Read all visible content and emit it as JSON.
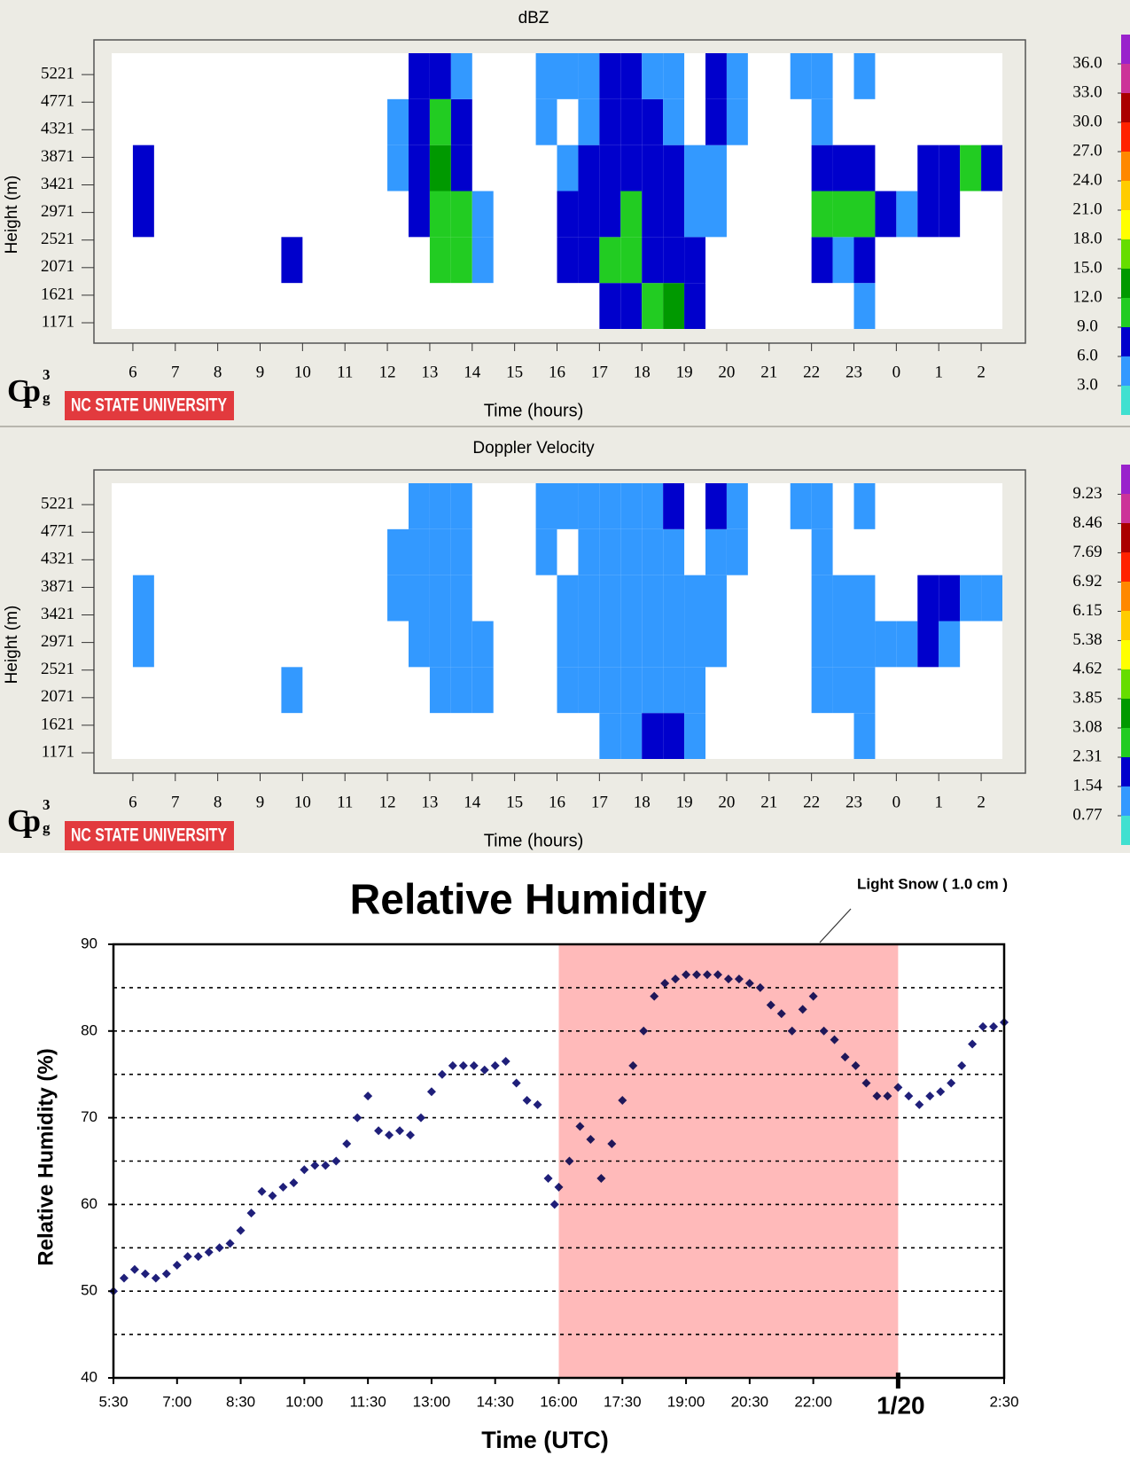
{
  "chart_data": [
    {
      "type": "heatmap",
      "title": "dBZ",
      "xlabel": "Time (hours)",
      "ylabel": "Height (m)",
      "xlim": [
        5.5,
        26.5
      ],
      "ylim": [
        1070,
        5570
      ],
      "xticks": [
        6,
        7,
        8,
        9,
        10,
        11,
        12,
        13,
        14,
        15,
        16,
        17,
        18,
        19,
        20,
        21,
        22,
        23,
        {
          "value": 24,
          "label": "0"
        },
        {
          "value": 25,
          "label": "1"
        },
        {
          "value": 26,
          "label": "2"
        }
      ],
      "yticks": [
        1171,
        1621,
        2071,
        2521,
        2971,
        3421,
        3871,
        4321,
        4771,
        5221
      ],
      "x_bins": [
        5.5,
        6,
        6.5,
        7,
        7.5,
        8,
        8.5,
        9,
        9.5,
        10,
        10.5,
        11,
        11.5,
        12,
        12.5,
        13,
        13.5,
        14,
        14.5,
        15,
        15.5,
        16,
        16.5,
        17,
        17.5,
        18,
        18.5,
        19,
        19.5,
        20,
        20.5,
        21,
        21.5,
        22,
        22.5,
        23,
        23.5,
        24,
        24.5,
        25,
        25.5,
        26,
        26.5
      ],
      "y_bins": [
        1070,
        1820,
        2570,
        3320,
        4070,
        4820,
        5570
      ],
      "z": [
        [
          null,
          null,
          null,
          null,
          null,
          null,
          null,
          null,
          null,
          null,
          null,
          null,
          null,
          null,
          null,
          null,
          null,
          null,
          null,
          null,
          null,
          null,
          null,
          7,
          8,
          10,
          12,
          8,
          null,
          null,
          null,
          null,
          null,
          null,
          null,
          5,
          null,
          null,
          null,
          null,
          null,
          null
        ],
        [
          null,
          null,
          null,
          null,
          null,
          null,
          null,
          null,
          6,
          null,
          null,
          null,
          null,
          null,
          null,
          9,
          9,
          5,
          null,
          null,
          null,
          7,
          7,
          9,
          9,
          8,
          8,
          6,
          null,
          null,
          null,
          null,
          null,
          7,
          5,
          8,
          null,
          null,
          null,
          null,
          null,
          null
        ],
        [
          null,
          8,
          null,
          null,
          null,
          null,
          null,
          null,
          null,
          null,
          null,
          null,
          null,
          null,
          8,
          11,
          9,
          5,
          null,
          null,
          null,
          7,
          7,
          8,
          9,
          8,
          7,
          5,
          5,
          null,
          null,
          null,
          null,
          10,
          9,
          9,
          6,
          5,
          6,
          6,
          null,
          null
        ],
        [
          null,
          8,
          null,
          null,
          null,
          null,
          null,
          null,
          null,
          null,
          null,
          null,
          null,
          5,
          8,
          12,
          8,
          null,
          null,
          null,
          null,
          5,
          7,
          8,
          8,
          7,
          6,
          5,
          5,
          null,
          null,
          null,
          null,
          6,
          8,
          7,
          null,
          null,
          7,
          7,
          9,
          6
        ],
        [
          null,
          null,
          null,
          null,
          null,
          null,
          null,
          null,
          null,
          null,
          null,
          null,
          null,
          5,
          7,
          10,
          6,
          null,
          null,
          null,
          4,
          null,
          5,
          7,
          7,
          6,
          5,
          null,
          6,
          4,
          null,
          null,
          null,
          4,
          null,
          null,
          null,
          null,
          null,
          null,
          null,
          null
        ],
        [
          null,
          null,
          null,
          null,
          null,
          null,
          null,
          null,
          null,
          null,
          null,
          null,
          null,
          null,
          6,
          7,
          5,
          null,
          null,
          null,
          4,
          5,
          5,
          6,
          7,
          5,
          5,
          null,
          7,
          4,
          null,
          null,
          4,
          4,
          null,
          4,
          null,
          null,
          null,
          null,
          null,
          null
        ]
      ],
      "colorbar": {
        "zlim": [
          0,
          39
        ],
        "colors": [
          "#40e0d0",
          "#3399ff",
          "#0000cc",
          "#22cc22",
          "#009900",
          "#66dd00",
          "#ffff00",
          "#ffcc00",
          "#ff8800",
          "#ff2200",
          "#aa0000",
          "#cc3399",
          "#9922cc"
        ],
        "ticks": [
          {
            "value": 3,
            "label": "3.0"
          },
          {
            "value": 6,
            "label": "6.0"
          },
          {
            "value": 9,
            "label": "9.0"
          },
          {
            "value": 12,
            "label": "12.0"
          },
          {
            "value": 15,
            "label": "15.0"
          },
          {
            "value": 18,
            "label": "18.0"
          },
          {
            "value": 21,
            "label": "21.0"
          },
          {
            "value": 24,
            "label": "24.0"
          },
          {
            "value": 27,
            "label": "27.0"
          },
          {
            "value": 30,
            "label": "30.0"
          },
          {
            "value": 33,
            "label": "33.0"
          },
          {
            "value": 36,
            "label": "36.0"
          }
        ]
      },
      "logo_mark": "Cp",
      "logo_sup": "3",
      "logo_sub": "g",
      "logo": "NC STATE UNIVERSITY"
    },
    {
      "type": "heatmap",
      "title": "Doppler Velocity",
      "xlabel": "Time (hours)",
      "ylabel": "Height (m)",
      "xlim": [
        5.5,
        26.5
      ],
      "ylim": [
        1070,
        5570
      ],
      "xticks": [
        6,
        7,
        8,
        9,
        10,
        11,
        12,
        13,
        14,
        15,
        16,
        17,
        18,
        19,
        20,
        21,
        22,
        23,
        {
          "value": 24,
          "label": "0"
        },
        {
          "value": 25,
          "label": "1"
        },
        {
          "value": 26,
          "label": "2"
        }
      ],
      "yticks": [
        1171,
        1621,
        2071,
        2521,
        2971,
        3421,
        3871,
        4321,
        4771,
        5221
      ],
      "x_bins": [
        5.5,
        6,
        6.5,
        7,
        7.5,
        8,
        8.5,
        9,
        9.5,
        10,
        10.5,
        11,
        11.5,
        12,
        12.5,
        13,
        13.5,
        14,
        14.5,
        15,
        15.5,
        16,
        16.5,
        17,
        17.5,
        18,
        18.5,
        19,
        19.5,
        20,
        20.5,
        21,
        21.5,
        22,
        22.5,
        23,
        23.5,
        24,
        24.5,
        25,
        25.5,
        26,
        26.5
      ],
      "y_bins": [
        1070,
        1820,
        2570,
        3320,
        4070,
        4820,
        5570
      ],
      "z": [
        [
          null,
          null,
          null,
          null,
          null,
          null,
          null,
          null,
          null,
          null,
          null,
          null,
          null,
          null,
          null,
          null,
          null,
          null,
          null,
          null,
          null,
          null,
          null,
          1.3,
          1.4,
          1.7,
          1.8,
          1.3,
          null,
          null,
          null,
          null,
          null,
          null,
          null,
          1.3,
          null,
          null,
          null,
          null,
          null,
          null
        ],
        [
          null,
          null,
          null,
          null,
          null,
          null,
          null,
          null,
          1.3,
          null,
          null,
          null,
          null,
          null,
          null,
          1.3,
          1.3,
          1.2,
          null,
          null,
          null,
          1.3,
          1.3,
          1.3,
          1.3,
          1.3,
          1.4,
          1.2,
          null,
          null,
          null,
          null,
          null,
          1.3,
          1.3,
          1.3,
          null,
          null,
          null,
          null,
          null,
          null
        ],
        [
          null,
          1.3,
          null,
          null,
          null,
          null,
          null,
          null,
          null,
          null,
          null,
          null,
          null,
          null,
          1.3,
          1.3,
          1.3,
          1.2,
          null,
          null,
          null,
          1.3,
          1.3,
          1.3,
          1.3,
          1.3,
          1.3,
          1.2,
          1.2,
          null,
          null,
          null,
          null,
          1.3,
          1.3,
          1.3,
          1.2,
          1.2,
          1.6,
          1.3,
          null,
          null
        ],
        [
          null,
          1.3,
          null,
          null,
          null,
          null,
          null,
          null,
          null,
          null,
          null,
          null,
          null,
          1.2,
          1.3,
          1.3,
          1.3,
          null,
          null,
          null,
          null,
          1.2,
          1.3,
          1.3,
          1.3,
          1.3,
          1.3,
          1.2,
          1.2,
          null,
          null,
          null,
          null,
          1.3,
          1.3,
          1.3,
          null,
          null,
          1.8,
          1.9,
          1.3,
          1.2
        ],
        [
          null,
          null,
          null,
          null,
          null,
          null,
          null,
          null,
          null,
          null,
          null,
          null,
          null,
          1.3,
          1.3,
          1.3,
          1.3,
          null,
          null,
          null,
          1.2,
          null,
          1.3,
          1.3,
          1.3,
          1.3,
          1.3,
          null,
          1.3,
          1.2,
          null,
          null,
          null,
          1.2,
          null,
          null,
          null,
          null,
          null,
          null,
          null,
          null
        ],
        [
          null,
          null,
          null,
          null,
          null,
          null,
          null,
          null,
          null,
          null,
          null,
          null,
          null,
          null,
          1.2,
          1.3,
          1.3,
          null,
          null,
          null,
          1.2,
          1.3,
          1.3,
          1.3,
          1.4,
          1.4,
          1.6,
          null,
          1.6,
          1.3,
          null,
          null,
          1.3,
          1.3,
          null,
          1.3,
          null,
          null,
          null,
          null,
          null,
          null
        ]
      ],
      "colorbar": {
        "zlim": [
          0,
          10.01
        ],
        "colors": [
          "#40e0d0",
          "#3399ff",
          "#0000cc",
          "#22cc22",
          "#009900",
          "#66dd00",
          "#ffff00",
          "#ffcc00",
          "#ff8800",
          "#ff2200",
          "#aa0000",
          "#cc3399",
          "#9922cc"
        ],
        "ticks": [
          0.77,
          1.54,
          2.31,
          3.08,
          3.85,
          4.62,
          5.38,
          6.15,
          6.92,
          7.69,
          8.46,
          9.23
        ]
      },
      "logo_mark": "Cp",
      "logo_sup": "3",
      "logo_sub": "g",
      "logo": "NC STATE UNIVERSITY"
    },
    {
      "type": "scatter",
      "title": "Relative Humidity",
      "xlabel": "Time (UTC)",
      "ylabel": "Relative Humidity (%)",
      "xlim": [
        5.5,
        26.5
      ],
      "ylim": [
        40,
        90
      ],
      "xticks": [
        {
          "value": 5.5,
          "label": "5:30"
        },
        {
          "value": 7,
          "label": "7:00"
        },
        {
          "value": 8.5,
          "label": "8:30"
        },
        {
          "value": 10,
          "label": "10:00"
        },
        {
          "value": 11.5,
          "label": "11:30"
        },
        {
          "value": 13,
          "label": "13:00"
        },
        {
          "value": 14.5,
          "label": "14:30"
        },
        {
          "value": 16,
          "label": "16:00"
        },
        {
          "value": 17.5,
          "label": "17:30"
        },
        {
          "value": 19,
          "label": "19:00"
        },
        {
          "value": 20.5,
          "label": "20:30"
        },
        {
          "value": 22,
          "label": "22:00"
        },
        {
          "value": 26.5,
          "label": "2:30"
        }
      ],
      "date_tick": {
        "value": 24,
        "label": "1/20"
      },
      "yticks": [
        40,
        50,
        60,
        70,
        80,
        90
      ],
      "grid_lines": [
        45,
        50,
        55,
        60,
        65,
        70,
        75,
        80,
        85
      ],
      "shade": {
        "x": [
          16,
          24
        ],
        "color": "#ffbaba"
      },
      "annotation": "Light Snow ( 1.0 cm )",
      "color": "#1f1f7a",
      "x": [
        5.5,
        5.75,
        6,
        6.25,
        6.5,
        6.75,
        7,
        7.25,
        7.5,
        7.75,
        8,
        8.25,
        8.5,
        8.75,
        9,
        9.25,
        9.5,
        9.75,
        10,
        10.25,
        10.5,
        10.75,
        11,
        11.25,
        11.5,
        11.75,
        12,
        12.25,
        12.5,
        12.75,
        13,
        13.25,
        13.5,
        13.75,
        14,
        14.25,
        14.5,
        14.75,
        15,
        15.25,
        15.5,
        15.75,
        15.9,
        16,
        16.25,
        16.5,
        16.75,
        17,
        17.25,
        17.5,
        17.75,
        18,
        18.25,
        18.5,
        18.75,
        19,
        19.25,
        19.5,
        19.75,
        20,
        20.25,
        20.5,
        20.75,
        21,
        21.25,
        21.5,
        21.75,
        22,
        22.25,
        22.5,
        22.75,
        23,
        23.25,
        23.5,
        23.75,
        24,
        24.25,
        24.5,
        24.75,
        25,
        25.25,
        25.5,
        25.75,
        26,
        26.25,
        26.5
      ],
      "values": [
        50,
        51.5,
        52.5,
        52,
        51.5,
        52,
        53,
        54,
        54,
        54.5,
        55,
        55.5,
        57,
        59,
        61.5,
        61,
        62,
        62.5,
        64,
        64.5,
        64.5,
        65,
        67,
        70,
        72.5,
        68.5,
        68,
        68.5,
        68,
        70,
        73,
        75,
        76,
        76,
        76,
        75.5,
        76,
        76.5,
        74,
        72,
        71.5,
        63,
        60,
        62,
        65,
        69,
        67.5,
        63,
        67,
        72,
        76,
        80,
        84,
        85.5,
        86,
        86.5,
        86.5,
        86.5,
        86.5,
        86,
        86,
        85.5,
        85,
        83,
        82,
        80,
        82.5,
        84,
        80,
        79,
        77,
        76,
        74,
        72.5,
        72.5,
        73.5,
        72.5,
        71.5,
        72.5,
        73,
        74,
        76,
        78.5,
        80.5,
        80.5,
        81
      ]
    }
  ]
}
